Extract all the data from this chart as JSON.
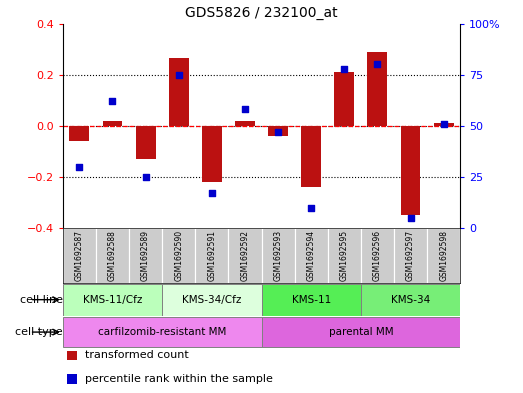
{
  "title": "GDS5826 / 232100_at",
  "samples": [
    "GSM1692587",
    "GSM1692588",
    "GSM1692589",
    "GSM1692590",
    "GSM1692591",
    "GSM1692592",
    "GSM1692593",
    "GSM1692594",
    "GSM1692595",
    "GSM1692596",
    "GSM1692597",
    "GSM1692598"
  ],
  "transformed_count": [
    -0.06,
    0.02,
    -0.13,
    0.265,
    -0.22,
    0.02,
    -0.04,
    -0.24,
    0.21,
    0.29,
    -0.35,
    0.01
  ],
  "percentile_rank": [
    30,
    62,
    25,
    75,
    17,
    58,
    47,
    10,
    78,
    80,
    5,
    51
  ],
  "cell_line_groups": [
    {
      "label": "KMS-11/Cfz",
      "start": 0,
      "end": 2,
      "color": "#bbffbb"
    },
    {
      "label": "KMS-34/Cfz",
      "start": 3,
      "end": 5,
      "color": "#ddffdd"
    },
    {
      "label": "KMS-11",
      "start": 6,
      "end": 8,
      "color": "#55ee55"
    },
    {
      "label": "KMS-34",
      "start": 9,
      "end": 11,
      "color": "#77ee77"
    }
  ],
  "cell_type_groups": [
    {
      "label": "carfilzomib-resistant MM",
      "start": 0,
      "end": 5,
      "color": "#ee88ee"
    },
    {
      "label": "parental MM",
      "start": 6,
      "end": 11,
      "color": "#dd66dd"
    }
  ],
  "bar_color": "#bb1111",
  "dot_color": "#0000cc",
  "ylim": [
    -0.4,
    0.4
  ],
  "yticks_left": [
    -0.4,
    -0.2,
    0.0,
    0.2,
    0.4
  ],
  "yticks_right_vals": [
    0,
    25,
    50,
    75,
    100
  ],
  "yticks_right_labels": [
    "0",
    "25",
    "50",
    "75",
    "100%"
  ],
  "legend_labels": [
    "transformed count",
    "percentile rank within the sample"
  ],
  "sample_bg_color": "#cccccc",
  "grid_color": "#000000"
}
